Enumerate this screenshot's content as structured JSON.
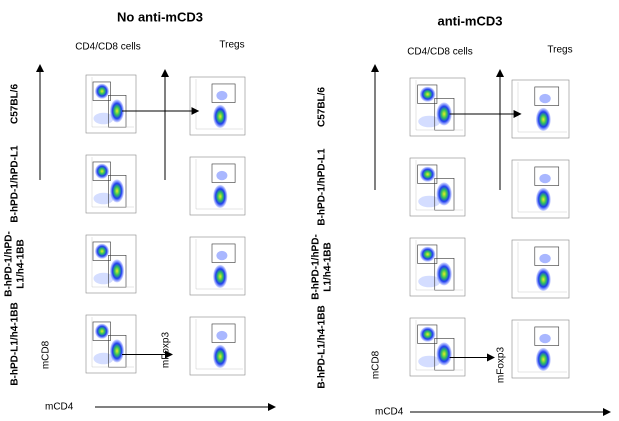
{
  "panels": [
    {
      "title": "No anti-mCD3",
      "columns": [
        "CD4/CD8 cells",
        "Tregs"
      ],
      "rows": [
        [
          "C57BL/6"
        ],
        [
          "B-hPD-1/hPD-L1"
        ],
        [
          "B-hPD-1/hPD-",
          "L1/h4-1BB"
        ],
        [
          "B-hPD-L1/h4-1BB"
        ]
      ],
      "axes": {
        "x": "mCD4",
        "y": "mCD8",
        "y2": "mFoxp3"
      }
    },
    {
      "title": "anti-mCD3",
      "columns": [
        "CD4/CD8 cells",
        "Tregs"
      ],
      "rows": [
        [
          "C57BL/6"
        ],
        [
          "B-hPD-1/hPD-L1"
        ],
        [
          "B-hPD-1/hPD-",
          "L1/h4-1BB"
        ],
        [
          "B-hPD-L1/h4-1BB"
        ]
      ],
      "axes": {
        "x": "mCD4",
        "y": "mCD8",
        "y2": "mFoxp3"
      }
    }
  ]
}
